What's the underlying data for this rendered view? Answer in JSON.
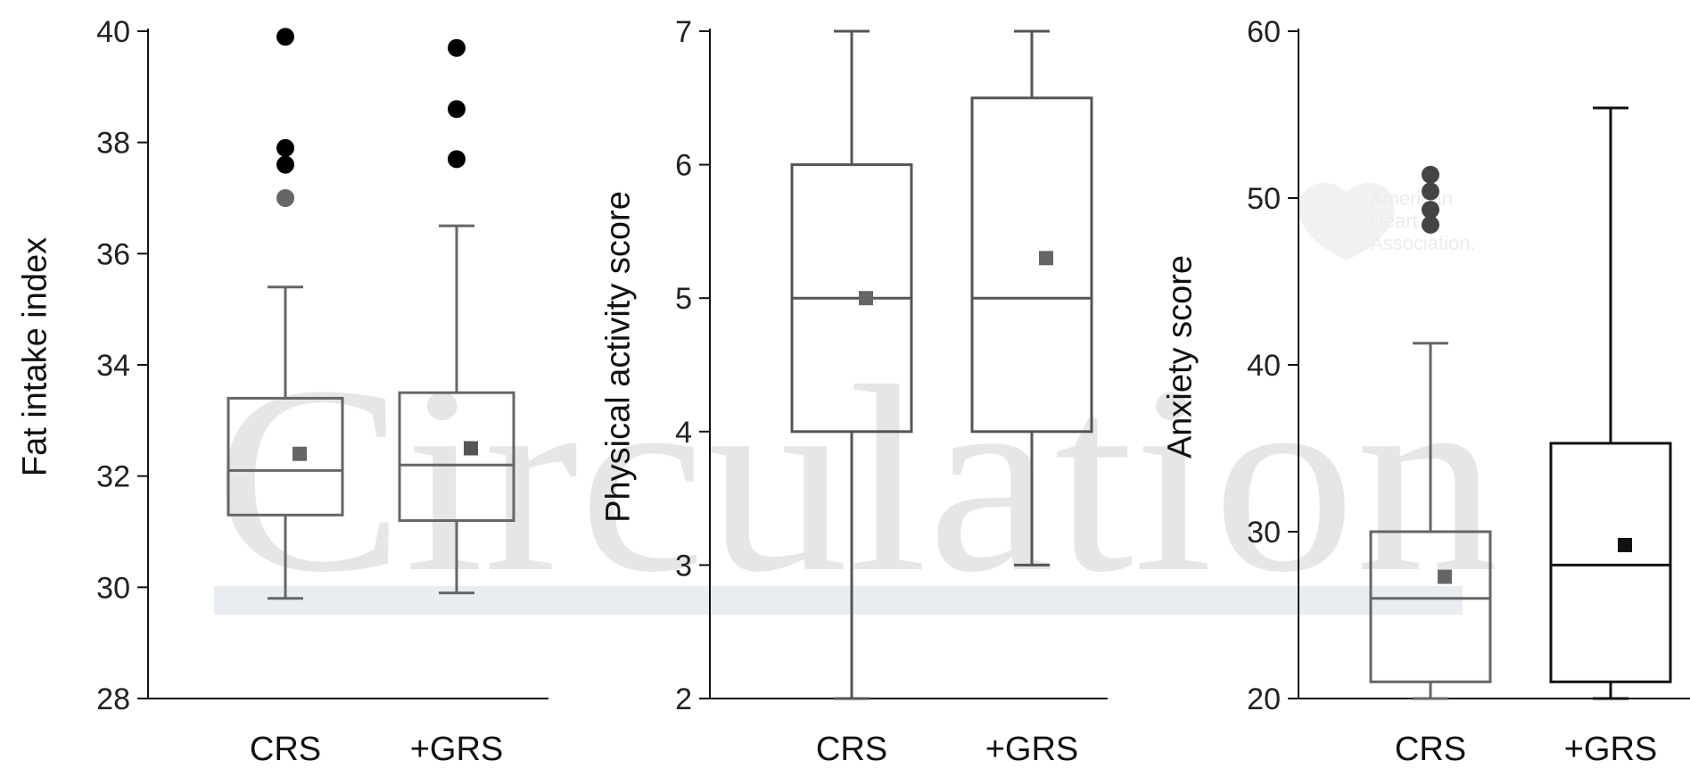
{
  "watermark": {
    "journal": "Circulation",
    "logo": [
      "American",
      "Heart",
      "Association."
    ]
  },
  "chart_data": [
    {
      "type": "box",
      "ylabel": "Fat intake index",
      "ylim": [
        28,
        40
      ],
      "yticks": [
        28,
        30,
        32,
        34,
        36,
        38,
        40
      ],
      "categories": [
        "CRS",
        "+GRS"
      ],
      "boxes": [
        {
          "category": "CRS",
          "whisker_low": 29.8,
          "q1": 31.3,
          "median": 32.1,
          "q3": 33.4,
          "whisker_high": 35.4,
          "mean": 32.4,
          "outliers": [
            37.0,
            37.6,
            37.9,
            39.9
          ]
        },
        {
          "category": "+GRS",
          "whisker_low": 29.9,
          "q1": 31.2,
          "median": 32.2,
          "q3": 33.5,
          "whisker_high": 36.5,
          "mean": 32.5,
          "outliers": [
            37.7,
            38.6,
            39.7
          ]
        }
      ]
    },
    {
      "type": "box",
      "ylabel": "Physical activity score",
      "ylim": [
        2,
        7
      ],
      "yticks": [
        2,
        3,
        4,
        5,
        6,
        7
      ],
      "categories": [
        "CRS",
        "+GRS"
      ],
      "boxes": [
        {
          "category": "CRS",
          "whisker_low": 2.0,
          "q1": 4.0,
          "median": 5.0,
          "q3": 6.0,
          "whisker_high": 7.0,
          "mean": 5.0,
          "outliers": []
        },
        {
          "category": "+GRS",
          "whisker_low": 3.0,
          "q1": 4.0,
          "median": 5.0,
          "q3": 6.5,
          "whisker_high": 7.0,
          "mean": 5.3,
          "outliers": []
        }
      ]
    },
    {
      "type": "box",
      "ylabel": "Anxiety score",
      "ylim": [
        20,
        60
      ],
      "yticks": [
        20,
        30,
        40,
        50,
        60
      ],
      "categories": [
        "CRS",
        "+GRS"
      ],
      "boxes": [
        {
          "category": "CRS",
          "whisker_low": 20.0,
          "q1": 21.0,
          "median": 26.0,
          "q3": 30.0,
          "whisker_high": 41.3,
          "mean": 27.3,
          "outliers": [
            48.4,
            49.3,
            50.4,
            51.4
          ]
        },
        {
          "category": "+GRS",
          "whisker_low": 20.0,
          "q1": 21.0,
          "median": 28.0,
          "q3": 35.3,
          "whisker_high": 55.4,
          "mean": 29.2,
          "outliers": []
        }
      ]
    }
  ]
}
